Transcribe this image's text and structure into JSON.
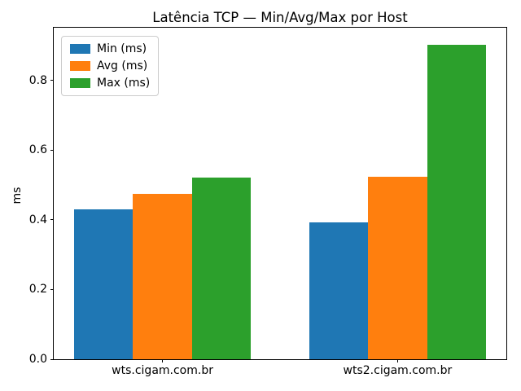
{
  "figure": {
    "background": "#ffffff",
    "axis_color": "#000000",
    "legend_border_color": "#cccccc"
  },
  "chart_data": {
    "type": "bar",
    "title": "Latência TCP — Min/Avg/Max por Host",
    "xlabel": "",
    "ylabel": "ms",
    "categories": [
      "wts.cigam.com.br",
      "wts2.cigam.com.br"
    ],
    "series": [
      {
        "name": "Min (ms)",
        "color": "#1f77b4",
        "values": [
          0.43,
          0.393
        ]
      },
      {
        "name": "Avg (ms)",
        "color": "#ff7f0e",
        "values": [
          0.474,
          0.525
        ]
      },
      {
        "name": "Max (ms)",
        "color": "#2ca02c",
        "values": [
          0.521,
          0.902
        ]
      }
    ],
    "yticks": [
      "0.0",
      "0.2",
      "0.4",
      "0.6",
      "0.8"
    ],
    "ylim": [
      0,
      0.952
    ],
    "xlim": [
      -0.4625,
      1.4625
    ],
    "bar_width": 0.25,
    "legend_position": "upper left",
    "grid": false
  }
}
